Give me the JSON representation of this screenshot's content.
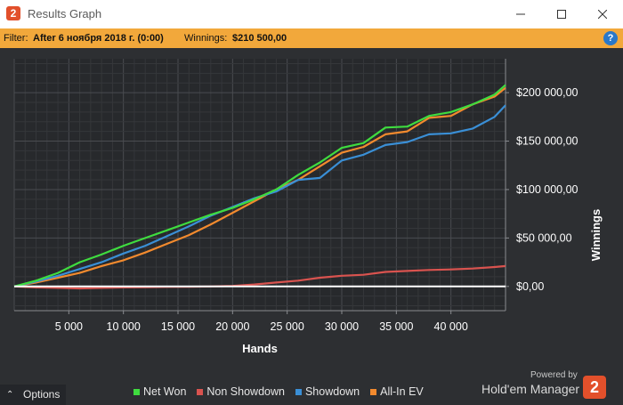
{
  "window": {
    "title": "Results Graph",
    "app_icon": "2",
    "minimize_icon": "minimize-icon",
    "maximize_icon": "maximize-icon",
    "close_icon": "close-icon"
  },
  "filter": {
    "label": "Filter:",
    "value": "After 6 ноября 2018 г. (0:00)",
    "winnings_label": "Winnings:",
    "winnings_value": "$210 500,00",
    "help_icon": "?"
  },
  "options": {
    "label": "Options",
    "icon": "chevron-up-icon"
  },
  "legend": {
    "items": [
      {
        "label": "Net Won",
        "color": "#3fdc3f"
      },
      {
        "label": "Non Showdown",
        "color": "#d9534f"
      },
      {
        "label": "Showdown",
        "color": "#3a8fd6"
      },
      {
        "label": "All-In EV",
        "color": "#f28a2e"
      }
    ]
  },
  "branding": {
    "powered_by": "Powered by",
    "name": "Hold'em Manager",
    "logo": "2"
  },
  "chart_data": {
    "type": "line",
    "xlabel": "Hands",
    "ylabel": "Winnings",
    "xlim": [
      0,
      45000
    ],
    "ylim": [
      -25000,
      235000
    ],
    "x_ticks": [
      5000,
      10000,
      15000,
      20000,
      25000,
      30000,
      35000,
      40000
    ],
    "x_tick_labels": [
      "5 000",
      "10 000",
      "15 000",
      "20 000",
      "25 000",
      "30 000",
      "35 000",
      "40 000"
    ],
    "y_ticks": [
      0,
      50000,
      100000,
      150000,
      200000
    ],
    "y_tick_labels": [
      "$0,00",
      "$50 000,00",
      "$100 000,00",
      "$150 000,00",
      "$200 000,00"
    ],
    "grid": true,
    "x": [
      0,
      2000,
      4000,
      6000,
      8000,
      10000,
      12000,
      14000,
      16000,
      18000,
      20000,
      22000,
      24000,
      26000,
      28000,
      30000,
      32000,
      34000,
      36000,
      38000,
      40000,
      42000,
      44000,
      45000
    ],
    "series": [
      {
        "name": "Net Won",
        "color": "#3fdc3f",
        "values": [
          0,
          6000,
          14000,
          25000,
          33000,
          42000,
          50000,
          58000,
          66000,
          74000,
          81000,
          90000,
          100000,
          115000,
          128000,
          143000,
          148000,
          164000,
          165000,
          176000,
          180000,
          188000,
          198000,
          208000
        ]
      },
      {
        "name": "Non Showdown",
        "color": "#d9534f",
        "values": [
          0,
          -1000,
          -1500,
          -2000,
          -1500,
          -1000,
          -800,
          -500,
          -300,
          0,
          500,
          2000,
          4000,
          6000,
          9000,
          11000,
          12000,
          15000,
          16000,
          17000,
          17500,
          18500,
          20000,
          21000
        ]
      },
      {
        "name": "Showdown",
        "color": "#3a8fd6",
        "values": [
          0,
          5000,
          11000,
          18000,
          25000,
          34000,
          42000,
          52000,
          62000,
          73000,
          82000,
          91000,
          98000,
          110000,
          112000,
          130000,
          136000,
          146000,
          149000,
          157000,
          158000,
          163000,
          175000,
          187000
        ]
      },
      {
        "name": "All-In EV",
        "color": "#f28a2e",
        "values": [
          0,
          4000,
          9000,
          14000,
          21000,
          27000,
          35000,
          44000,
          53000,
          64000,
          76000,
          88000,
          100000,
          110000,
          124000,
          138000,
          144000,
          157000,
          160000,
          174000,
          176000,
          188000,
          196000,
          205000
        ]
      }
    ]
  }
}
